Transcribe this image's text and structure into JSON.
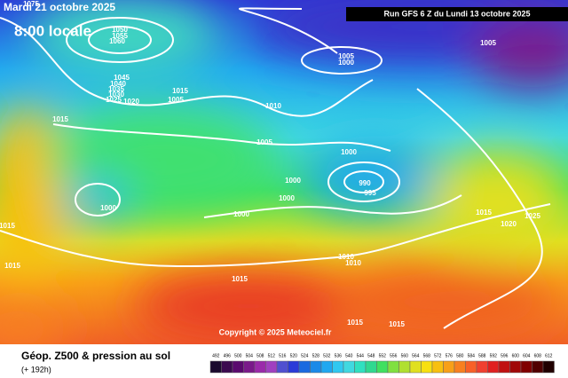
{
  "header": {
    "date": "Mardi 21 octobre 2025",
    "hour": "8:00 locale",
    "run": "Run GFS 6 Z du Lundi 13 octobre 2025"
  },
  "copyright": "Copyright © 2025 Meteociel.fr",
  "footer": {
    "title": "Géop. Z500 & pression au sol",
    "lead": "(+ 192h)"
  },
  "isobar_labels": [
    1075,
    1050,
    1055,
    1060,
    1045,
    1040,
    1035,
    1030,
    1025,
    1020,
    1015,
    1005,
    1015,
    1010,
    1005,
    1005,
    1000,
    1005,
    1000,
    1000,
    1000,
    990,
    995,
    1000,
    1000,
    1015,
    1015,
    1015,
    1025,
    1020,
    1010,
    1010,
    1015,
    1015,
    1015
  ],
  "legend": {
    "items": [
      {
        "label": 492,
        "color": "#1a0a2e"
      },
      {
        "label": 496,
        "color": "#3b0a4f"
      },
      {
        "label": 500,
        "color": "#5a0a6e"
      },
      {
        "label": 504,
        "color": "#7a1a8a"
      },
      {
        "label": 508,
        "color": "#9a2aaa"
      },
      {
        "label": 512,
        "color": "#a040c0"
      },
      {
        "label": 516,
        "color": "#5050d0"
      },
      {
        "label": 520,
        "color": "#2a3ad8"
      },
      {
        "label": 524,
        "color": "#1a6ae0"
      },
      {
        "label": 528,
        "color": "#1a8ae8"
      },
      {
        "label": 532,
        "color": "#20a8f0"
      },
      {
        "label": 536,
        "color": "#30c8f0"
      },
      {
        "label": 540,
        "color": "#40d8e0"
      },
      {
        "label": 544,
        "color": "#30e0c0"
      },
      {
        "label": 548,
        "color": "#30d890"
      },
      {
        "label": 552,
        "color": "#40e060"
      },
      {
        "label": 556,
        "color": "#80e040"
      },
      {
        "label": 560,
        "color": "#b0e030"
      },
      {
        "label": 564,
        "color": "#e0e020"
      },
      {
        "label": 568,
        "color": "#f8e010"
      },
      {
        "label": 572,
        "color": "#f8c010"
      },
      {
        "label": 576,
        "color": "#f8a018"
      },
      {
        "label": 580,
        "color": "#f88020"
      },
      {
        "label": 584,
        "color": "#f86028"
      },
      {
        "label": 588,
        "color": "#f04030"
      },
      {
        "label": 592,
        "color": "#e02020"
      },
      {
        "label": 596,
        "color": "#c01010"
      },
      {
        "label": 600,
        "color": "#a00808"
      },
      {
        "label": 604,
        "color": "#800000"
      },
      {
        "label": 608,
        "color": "#500000"
      },
      {
        "label": 612,
        "color": "#200000"
      }
    ]
  }
}
